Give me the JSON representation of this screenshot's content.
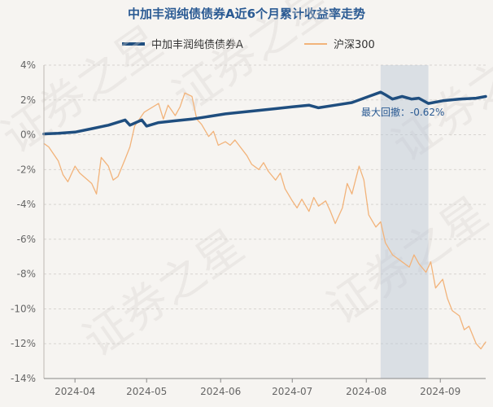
{
  "chart_data": {
    "type": "line",
    "title": "中加丰润纯债债券A近6个月累计收益率走势",
    "watermark": "证券之星",
    "ylim": [
      -14,
      4
    ],
    "yticks": [
      "4%",
      "2%",
      "0%",
      "-2%",
      "-4%",
      "-6%",
      "-8%",
      "-10%",
      "-12%",
      "-14%"
    ],
    "xticks": [
      "2024-04",
      "2024-05",
      "2024-06",
      "2024-07",
      "2024-08",
      "2024-09"
    ],
    "x_range": [
      "2024-03-19",
      "2024-09-20"
    ],
    "grid": true,
    "legend_position": "top",
    "annotation": {
      "label": "最大回撤：-0.62%",
      "start": "2024-08-07",
      "end": "2024-08-27"
    },
    "series": [
      {
        "name": "中加丰润纯债债券A",
        "color": "#1f4e7f",
        "points": [
          [
            "2024-03-19",
            0.05
          ],
          [
            "2024-03-25",
            0.08
          ],
          [
            "2024-04-01",
            0.15
          ],
          [
            "2024-04-08",
            0.35
          ],
          [
            "2024-04-15",
            0.55
          ],
          [
            "2024-04-22",
            0.85
          ],
          [
            "2024-04-24",
            0.55
          ],
          [
            "2024-04-29",
            0.85
          ],
          [
            "2024-05-01",
            0.5
          ],
          [
            "2024-05-06",
            0.7
          ],
          [
            "2024-05-13",
            0.8
          ],
          [
            "2024-05-20",
            0.9
          ],
          [
            "2024-05-27",
            1.05
          ],
          [
            "2024-06-03",
            1.2
          ],
          [
            "2024-06-10",
            1.3
          ],
          [
            "2024-06-17",
            1.4
          ],
          [
            "2024-06-24",
            1.5
          ],
          [
            "2024-07-01",
            1.6
          ],
          [
            "2024-07-08",
            1.7
          ],
          [
            "2024-07-12",
            1.55
          ],
          [
            "2024-07-19",
            1.7
          ],
          [
            "2024-07-26",
            1.85
          ],
          [
            "2024-08-02",
            2.2
          ],
          [
            "2024-08-05",
            2.35
          ],
          [
            "2024-08-07",
            2.45
          ],
          [
            "2024-08-09",
            2.3
          ],
          [
            "2024-08-12",
            2.05
          ],
          [
            "2024-08-16",
            2.2
          ],
          [
            "2024-08-20",
            2.05
          ],
          [
            "2024-08-23",
            2.1
          ],
          [
            "2024-08-27",
            1.8
          ],
          [
            "2024-09-02",
            1.95
          ],
          [
            "2024-09-09",
            2.05
          ],
          [
            "2024-09-16",
            2.1
          ],
          [
            "2024-09-20",
            2.2
          ]
        ]
      },
      {
        "name": "沪深300",
        "color": "#f2b37a",
        "points": [
          [
            "2024-03-19",
            -0.5
          ],
          [
            "2024-03-21",
            -0.7
          ],
          [
            "2024-03-25",
            -1.5
          ],
          [
            "2024-03-27",
            -2.3
          ],
          [
            "2024-03-29",
            -2.7
          ],
          [
            "2024-04-01",
            -1.8
          ],
          [
            "2024-04-03",
            -2.2
          ],
          [
            "2024-04-08",
            -2.8
          ],
          [
            "2024-04-10",
            -3.4
          ],
          [
            "2024-04-12",
            -1.3
          ],
          [
            "2024-04-15",
            -1.8
          ],
          [
            "2024-04-17",
            -2.6
          ],
          [
            "2024-04-19",
            -2.4
          ],
          [
            "2024-04-22",
            -1.4
          ],
          [
            "2024-04-24",
            -0.7
          ],
          [
            "2024-04-26",
            0.5
          ],
          [
            "2024-04-30",
            1.3
          ],
          [
            "2024-05-06",
            1.8
          ],
          [
            "2024-05-08",
            0.9
          ],
          [
            "2024-05-10",
            1.7
          ],
          [
            "2024-05-13",
            1.1
          ],
          [
            "2024-05-15",
            1.6
          ],
          [
            "2024-05-17",
            2.4
          ],
          [
            "2024-05-20",
            2.2
          ],
          [
            "2024-05-22",
            0.9
          ],
          [
            "2024-05-24",
            0.6
          ],
          [
            "2024-05-27",
            -0.1
          ],
          [
            "2024-05-29",
            0.2
          ],
          [
            "2024-05-31",
            -0.6
          ],
          [
            "2024-06-03",
            -0.4
          ],
          [
            "2024-06-05",
            -0.6
          ],
          [
            "2024-06-07",
            -0.3
          ],
          [
            "2024-06-12",
            -1.2
          ],
          [
            "2024-06-14",
            -1.7
          ],
          [
            "2024-06-17",
            -2.0
          ],
          [
            "2024-06-19",
            -1.6
          ],
          [
            "2024-06-21",
            -2.1
          ],
          [
            "2024-06-24",
            -2.6
          ],
          [
            "2024-06-26",
            -2.2
          ],
          [
            "2024-06-28",
            -3.1
          ],
          [
            "2024-07-01",
            -3.8
          ],
          [
            "2024-07-03",
            -4.2
          ],
          [
            "2024-07-05",
            -3.7
          ],
          [
            "2024-07-08",
            -4.4
          ],
          [
            "2024-07-10",
            -3.6
          ],
          [
            "2024-07-12",
            -4.1
          ],
          [
            "2024-07-15",
            -3.8
          ],
          [
            "2024-07-17",
            -4.4
          ],
          [
            "2024-07-19",
            -5.1
          ],
          [
            "2024-07-22",
            -4.2
          ],
          [
            "2024-07-24",
            -2.8
          ],
          [
            "2024-07-26",
            -3.4
          ],
          [
            "2024-07-29",
            -1.8
          ],
          [
            "2024-07-31",
            -2.6
          ],
          [
            "2024-08-02",
            -4.6
          ],
          [
            "2024-08-05",
            -5.3
          ],
          [
            "2024-08-07",
            -5.0
          ],
          [
            "2024-08-09",
            -6.2
          ],
          [
            "2024-08-12",
            -6.9
          ],
          [
            "2024-08-14",
            -7.1
          ],
          [
            "2024-08-16",
            -7.3
          ],
          [
            "2024-08-19",
            -7.6
          ],
          [
            "2024-08-21",
            -6.9
          ],
          [
            "2024-08-23",
            -7.4
          ],
          [
            "2024-08-26",
            -7.9
          ],
          [
            "2024-08-28",
            -7.3
          ],
          [
            "2024-08-30",
            -8.8
          ],
          [
            "2024-09-02",
            -8.3
          ],
          [
            "2024-09-04",
            -9.4
          ],
          [
            "2024-09-06",
            -10.1
          ],
          [
            "2024-09-09",
            -10.4
          ],
          [
            "2024-09-11",
            -11.2
          ],
          [
            "2024-09-13",
            -11.0
          ],
          [
            "2024-09-16",
            -12.0
          ],
          [
            "2024-09-18",
            -12.3
          ],
          [
            "2024-09-20",
            -11.9
          ]
        ]
      }
    ]
  }
}
